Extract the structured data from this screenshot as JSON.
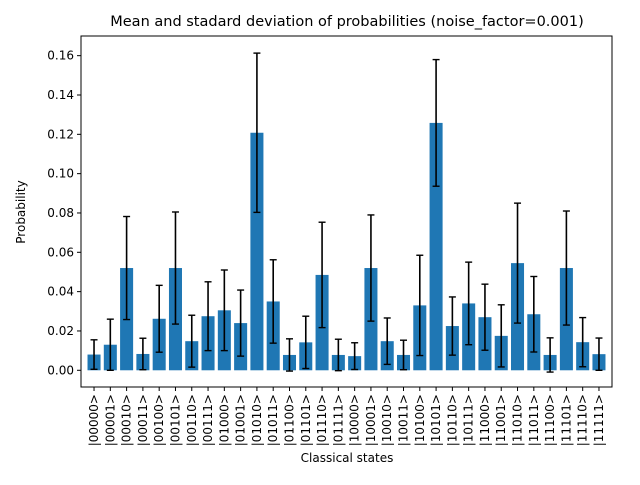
{
  "chart_data": {
    "type": "bar",
    "title": "Mean and stadard deviation of probabilities (noise_factor=0.001)",
    "xlabel": "Classical states",
    "ylabel": "Probability",
    "ylim": [
      -0.0085,
      0.17
    ],
    "yticks": [
      0.0,
      0.02,
      0.04,
      0.06,
      0.08,
      0.1,
      0.12,
      0.14,
      0.16
    ],
    "ytick_labels": [
      "0.00",
      "0.02",
      "0.04",
      "0.06",
      "0.08",
      "0.10",
      "0.12",
      "0.14",
      "0.16"
    ],
    "bar_color": "#1f77b4",
    "errorbar_color": "#000000",
    "grid": false,
    "categories": [
      "|00000>",
      "|00001>",
      "|00010>",
      "|00011>",
      "|00100>",
      "|00101>",
      "|00110>",
      "|00111>",
      "|01000>",
      "|01001>",
      "|01010>",
      "|01011>",
      "|01100>",
      "|01101>",
      "|01110>",
      "|01111>",
      "|10000>",
      "|10001>",
      "|10010>",
      "|10011>",
      "|10100>",
      "|10101>",
      "|10110>",
      "|10111>",
      "|11000>",
      "|11001>",
      "|11010>",
      "|11011>",
      "|11100>",
      "|11101>",
      "|11110>",
      "|11111>"
    ],
    "values": [
      0.008,
      0.013,
      0.052,
      0.0083,
      0.0262,
      0.052,
      0.0148,
      0.0275,
      0.0305,
      0.024,
      0.1208,
      0.035,
      0.0078,
      0.0142,
      0.0485,
      0.0078,
      0.0072,
      0.052,
      0.0148,
      0.0078,
      0.033,
      0.1258,
      0.0225,
      0.034,
      0.027,
      0.0175,
      0.0545,
      0.0285,
      0.0078,
      0.052,
      0.0143,
      0.0082
    ],
    "errors": [
      0.0075,
      0.013,
      0.0262,
      0.008,
      0.017,
      0.0285,
      0.0132,
      0.0175,
      0.0205,
      0.0168,
      0.0405,
      0.0212,
      0.0082,
      0.0133,
      0.0268,
      0.008,
      0.0068,
      0.027,
      0.0118,
      0.0075,
      0.0255,
      0.0322,
      0.0148,
      0.021,
      0.0168,
      0.0158,
      0.0305,
      0.0192,
      0.0087,
      0.029,
      0.0125,
      0.0082
    ]
  }
}
